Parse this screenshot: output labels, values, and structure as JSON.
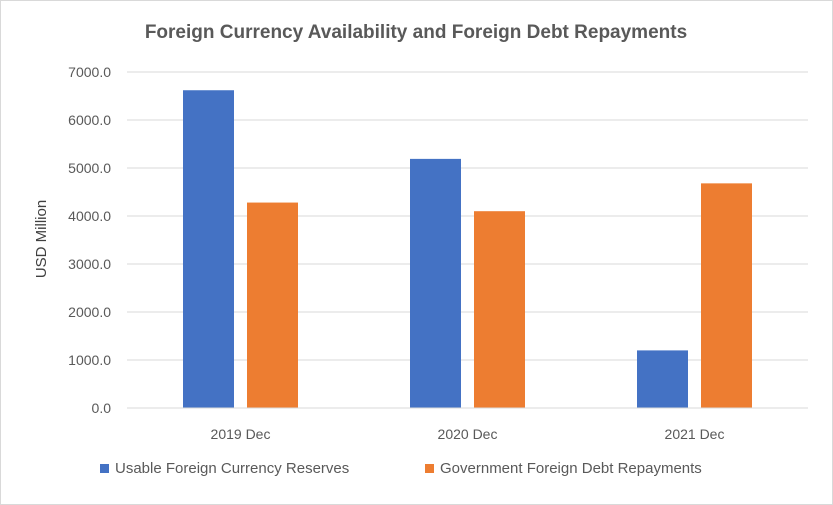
{
  "chart_data": {
    "type": "bar",
    "title": "Foreign Currency Availability and  Foreign Debt Repayments",
    "xlabel": "",
    "ylabel": "USD Million",
    "categories": [
      "2019 Dec",
      "2020 Dec",
      "2021 Dec"
    ],
    "series": [
      {
        "name": "Usable Foreign Currency Reserves",
        "color": "#4472C4",
        "values": [
          6620,
          5190,
          1200
        ]
      },
      {
        "name": "Government Foreign Debt Repayments",
        "color": "#ED7D31",
        "values": [
          4280,
          4100,
          4680
        ]
      }
    ],
    "ylim": [
      0,
      7000
    ],
    "yticks": [
      "0.0",
      "1000.0",
      "2000.0",
      "3000.0",
      "4000.0",
      "5000.0",
      "6000.0",
      "7000.0"
    ],
    "grid": true,
    "legend_position": "bottom"
  }
}
